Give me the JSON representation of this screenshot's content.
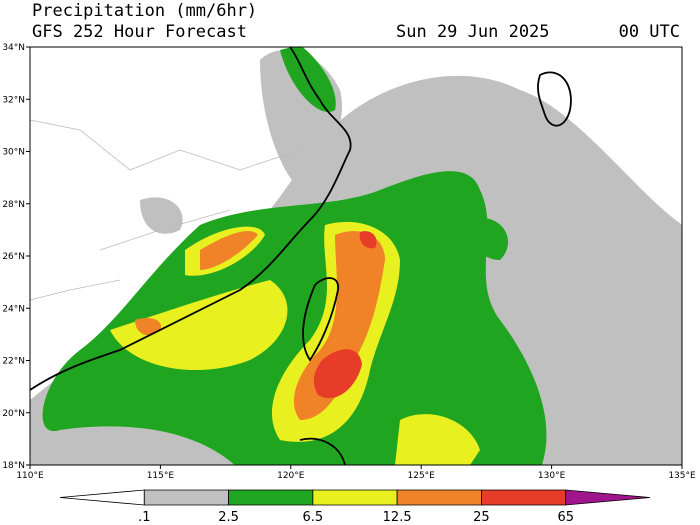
{
  "header": {
    "title": "Precipitation (mm/6hr)",
    "subtitle": "GFS 252 Hour Forecast",
    "date": "Sun 29 Jun 2025",
    "time": "00 UTC"
  },
  "map": {
    "lat_labels": [
      "18°N",
      "20°N",
      "22°N",
      "24°N",
      "26°N",
      "28°N",
      "30°N",
      "32°N",
      "34°N"
    ],
    "lon_labels": [
      "110°E",
      "115°E",
      "120°E",
      "125°E",
      "130°E",
      "135°E"
    ]
  },
  "legend": {
    "colors": [
      "#ffffff",
      "#c0c0c0",
      "#1fa51f",
      "#e8f020",
      "#f08228",
      "#e63c28",
      "#a0148c"
    ],
    "labels": [
      ".1",
      "2.5",
      "6.5",
      "12.5",
      "25",
      "65"
    ]
  }
}
